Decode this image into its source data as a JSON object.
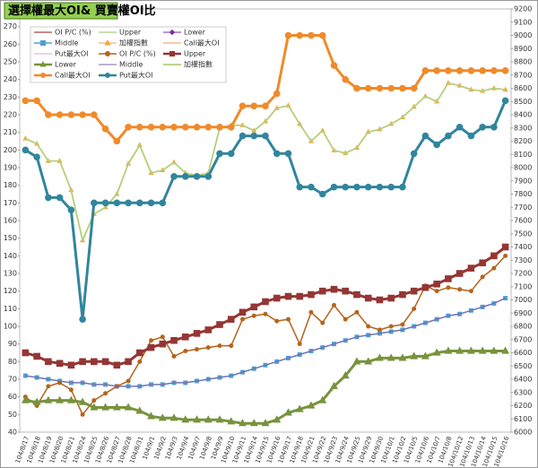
{
  "chart_data": {
    "type": "line",
    "title": "選擇權最大OI& 買賣權OI比",
    "categories": [
      "104/8/17",
      "104/8/18",
      "104/8/19",
      "104/8/20",
      "104/8/21",
      "104/8/24",
      "104/8/25",
      "104/8/26",
      "104/8/27",
      "104/8/28",
      "104/8/31",
      "104/9/1",
      "104/9/2",
      "104/9/3",
      "104/9/4",
      "104/9/7",
      "104/9/8",
      "104/9/9",
      "104/9/10",
      "104/9/11",
      "104/9/14",
      "104/9/15",
      "104/9/16",
      "104/9/17",
      "104/9/18",
      "104/9/21",
      "104/9/22",
      "104/9/23",
      "104/9/24",
      "104/9/25",
      "104/9/29",
      "104/9/30",
      "104/10/1",
      "104/10/2",
      "104/10/5",
      "104/10/6",
      "104/10/7",
      "104/10/8",
      "104/10/12",
      "104/10/13",
      "104/10/14",
      "104/10/15",
      "104/10/16"
    ],
    "ylim": [
      40,
      280
    ],
    "yticks": [
      40,
      50,
      60,
      70,
      80,
      90,
      100,
      110,
      120,
      130,
      140,
      150,
      160,
      170,
      180,
      190,
      200,
      210,
      220,
      230,
      240,
      250,
      260,
      270
    ],
    "y2lim": [
      6000,
      9200
    ],
    "y2ticks": [
      6000,
      6100,
      6200,
      6300,
      6400,
      6500,
      6600,
      6700,
      6800,
      6900,
      7000,
      7100,
      7200,
      7300,
      7400,
      7500,
      7600,
      7700,
      7800,
      7900,
      8000,
      8100,
      8200,
      8300,
      8400,
      8500,
      8600,
      8700,
      8800,
      8900,
      9000,
      9100,
      9200
    ],
    "grid": false,
    "series": [
      {
        "name": "OI P/C (%)",
        "color": "#8b1a1a",
        "marker": "none",
        "width": 1,
        "values": [
          60,
          55,
          66,
          68,
          64,
          50,
          58,
          62,
          66,
          69,
          80,
          92,
          94,
          83,
          86,
          87,
          88,
          89,
          89,
          104,
          106,
          107,
          103,
          104,
          90,
          108,
          102,
          112,
          104,
          108,
          100,
          98,
          100,
          101,
          110,
          123,
          120,
          122,
          121,
          120,
          128,
          133,
          140
        ]
      },
      {
        "name": "Upper",
        "color": "#9bbb59",
        "marker": "none",
        "width": 1,
        "values": [
          85,
          83,
          80,
          79,
          78,
          80,
          80,
          80,
          78,
          80,
          85,
          88,
          90,
          92,
          94,
          96,
          98,
          101,
          104,
          108,
          111,
          114,
          116,
          117,
          117,
          118,
          120,
          121,
          120,
          118,
          116,
          115,
          116,
          118,
          120,
          122,
          124,
          127,
          130,
          133,
          136,
          140,
          145
        ]
      },
      {
        "name": "Lower",
        "color": "#7030a0",
        "marker": "diamond",
        "width": 1,
        "values": [
          58,
          57,
          58,
          58,
          58,
          57,
          54,
          54,
          54,
          54,
          52,
          49,
          48,
          48,
          47,
          47,
          47,
          47,
          46,
          45,
          45,
          45,
          47,
          51,
          53,
          55,
          58,
          66,
          72,
          80,
          80,
          82,
          82,
          82,
          83,
          83,
          85,
          86,
          86,
          86,
          86,
          86,
          86
        ]
      },
      {
        "name": "Middle",
        "color": "#4f9fd5",
        "marker": "square",
        "width": 1.5,
        "values": [
          72,
          71,
          70,
          69,
          68,
          68,
          67,
          67,
          66,
          66,
          66,
          67,
          67,
          68,
          68,
          69,
          70,
          71,
          72,
          74,
          76,
          78,
          80,
          82,
          84,
          86,
          88,
          90,
          92,
          94,
          95,
          96,
          97,
          98,
          100,
          102,
          104,
          106,
          107,
          109,
          111,
          113,
          116
        ]
      },
      {
        "name": "加權指數",
        "color": "#f4a640",
        "marker": "triangle",
        "width": 1,
        "axis": "y2",
        "values": [
          8220,
          8180,
          8050,
          8050,
          7830,
          7450,
          7650,
          7700,
          7800,
          8030,
          8170,
          7960,
          7980,
          8040,
          7960,
          7940,
          7960,
          8300,
          8320,
          8320,
          8280,
          8350,
          8450,
          8470,
          8330,
          8200,
          8280,
          8130,
          8110,
          8150,
          8270,
          8290,
          8330,
          8380,
          8460,
          8540,
          8500,
          8640,
          8620,
          8590,
          8580,
          8600,
          8590
        ]
      },
      {
        "name": "Call最大OI",
        "color": "#f79646",
        "marker": "none",
        "width": 1,
        "values": [
          228,
          228,
          220,
          220,
          220,
          220,
          220,
          212,
          205,
          213,
          213,
          213,
          213,
          213,
          213,
          213,
          213,
          213,
          213,
          225,
          225,
          225,
          232,
          265,
          265,
          265,
          265,
          248,
          240,
          235,
          235,
          235,
          235,
          235,
          235,
          245,
          245,
          245,
          245,
          245,
          245,
          245,
          245
        ]
      },
      {
        "name": "Put最大OI",
        "color": "#e6a0c4",
        "marker": "none",
        "width": 1,
        "values": [
          200,
          196,
          173,
          173,
          166,
          104,
          170,
          170,
          170,
          170,
          170,
          170,
          170,
          185,
          185,
          185,
          185,
          198,
          198,
          208,
          208,
          208,
          198,
          198,
          179,
          179,
          175,
          179,
          179,
          179,
          179,
          179,
          179,
          179,
          198,
          208,
          203,
          208,
          213,
          208,
          213,
          213,
          228
        ]
      },
      {
        "name": "OI P/C (%)",
        "color": "#b5651d",
        "marker": "circle",
        "width": 1.5,
        "values": [
          60,
          55,
          66,
          68,
          64,
          50,
          58,
          62,
          66,
          69,
          80,
          92,
          94,
          83,
          86,
          87,
          88,
          89,
          89,
          104,
          106,
          107,
          103,
          104,
          90,
          108,
          102,
          112,
          104,
          108,
          100,
          98,
          100,
          101,
          110,
          123,
          120,
          122,
          121,
          120,
          128,
          133,
          140
        ]
      },
      {
        "name": "Upper",
        "color": "#943634",
        "marker": "square",
        "width": 3,
        "values": [
          85,
          83,
          80,
          79,
          78,
          80,
          80,
          80,
          78,
          80,
          85,
          88,
          90,
          92,
          94,
          96,
          98,
          101,
          104,
          108,
          111,
          114,
          116,
          117,
          117,
          118,
          120,
          121,
          120,
          118,
          116,
          115,
          116,
          118,
          120,
          122,
          124,
          127,
          130,
          133,
          136,
          140,
          145
        ]
      },
      {
        "name": "Lower",
        "color": "#77933c",
        "marker": "triangle",
        "width": 3,
        "values": [
          58,
          57,
          58,
          58,
          58,
          57,
          54,
          54,
          54,
          54,
          52,
          49,
          48,
          48,
          47,
          47,
          47,
          47,
          46,
          45,
          45,
          45,
          47,
          51,
          53,
          55,
          58,
          66,
          72,
          80,
          80,
          82,
          82,
          82,
          83,
          83,
          85,
          86,
          86,
          86,
          86,
          86,
          86
        ]
      },
      {
        "name": "Middle",
        "color": "#8064a2",
        "marker": "none",
        "width": 1,
        "values": [
          72,
          71,
          70,
          69,
          68,
          68,
          67,
          67,
          66,
          66,
          66,
          67,
          67,
          68,
          68,
          69,
          70,
          71,
          72,
          74,
          76,
          78,
          80,
          82,
          84,
          86,
          88,
          90,
          92,
          94,
          95,
          96,
          97,
          98,
          100,
          102,
          104,
          106,
          107,
          109,
          111,
          113,
          116
        ]
      },
      {
        "name": "加權指數",
        "color": "#b5cf7a",
        "marker": "none",
        "width": 1.8,
        "axis": "y2",
        "values": [
          8220,
          8180,
          8050,
          8050,
          7830,
          7450,
          7650,
          7700,
          7800,
          8030,
          8170,
          7960,
          7980,
          8040,
          7960,
          7940,
          7960,
          8300,
          8320,
          8320,
          8280,
          8350,
          8450,
          8470,
          8330,
          8200,
          8280,
          8130,
          8110,
          8150,
          8270,
          8290,
          8330,
          8380,
          8460,
          8540,
          8500,
          8640,
          8620,
          8590,
          8580,
          8600,
          8590
        ]
      },
      {
        "name": "Call最大OI",
        "color": "#f08a2a",
        "marker": "circle",
        "width": 3,
        "values": [
          228,
          228,
          220,
          220,
          220,
          220,
          220,
          212,
          205,
          213,
          213,
          213,
          213,
          213,
          213,
          213,
          213,
          213,
          213,
          225,
          225,
          225,
          232,
          265,
          265,
          265,
          265,
          248,
          240,
          235,
          235,
          235,
          235,
          235,
          235,
          245,
          245,
          245,
          245,
          245,
          245,
          245,
          245
        ]
      },
      {
        "name": "Put最大OI",
        "color": "#31859c",
        "marker": "circle",
        "width": 3,
        "values": [
          200,
          196,
          173,
          173,
          166,
          104,
          170,
          170,
          170,
          170,
          170,
          170,
          170,
          185,
          185,
          185,
          185,
          198,
          198,
          208,
          208,
          208,
          198,
          198,
          179,
          179,
          175,
          179,
          179,
          179,
          179,
          179,
          179,
          179,
          198,
          208,
          203,
          208,
          213,
          208,
          213,
          213,
          228
        ]
      }
    ]
  }
}
